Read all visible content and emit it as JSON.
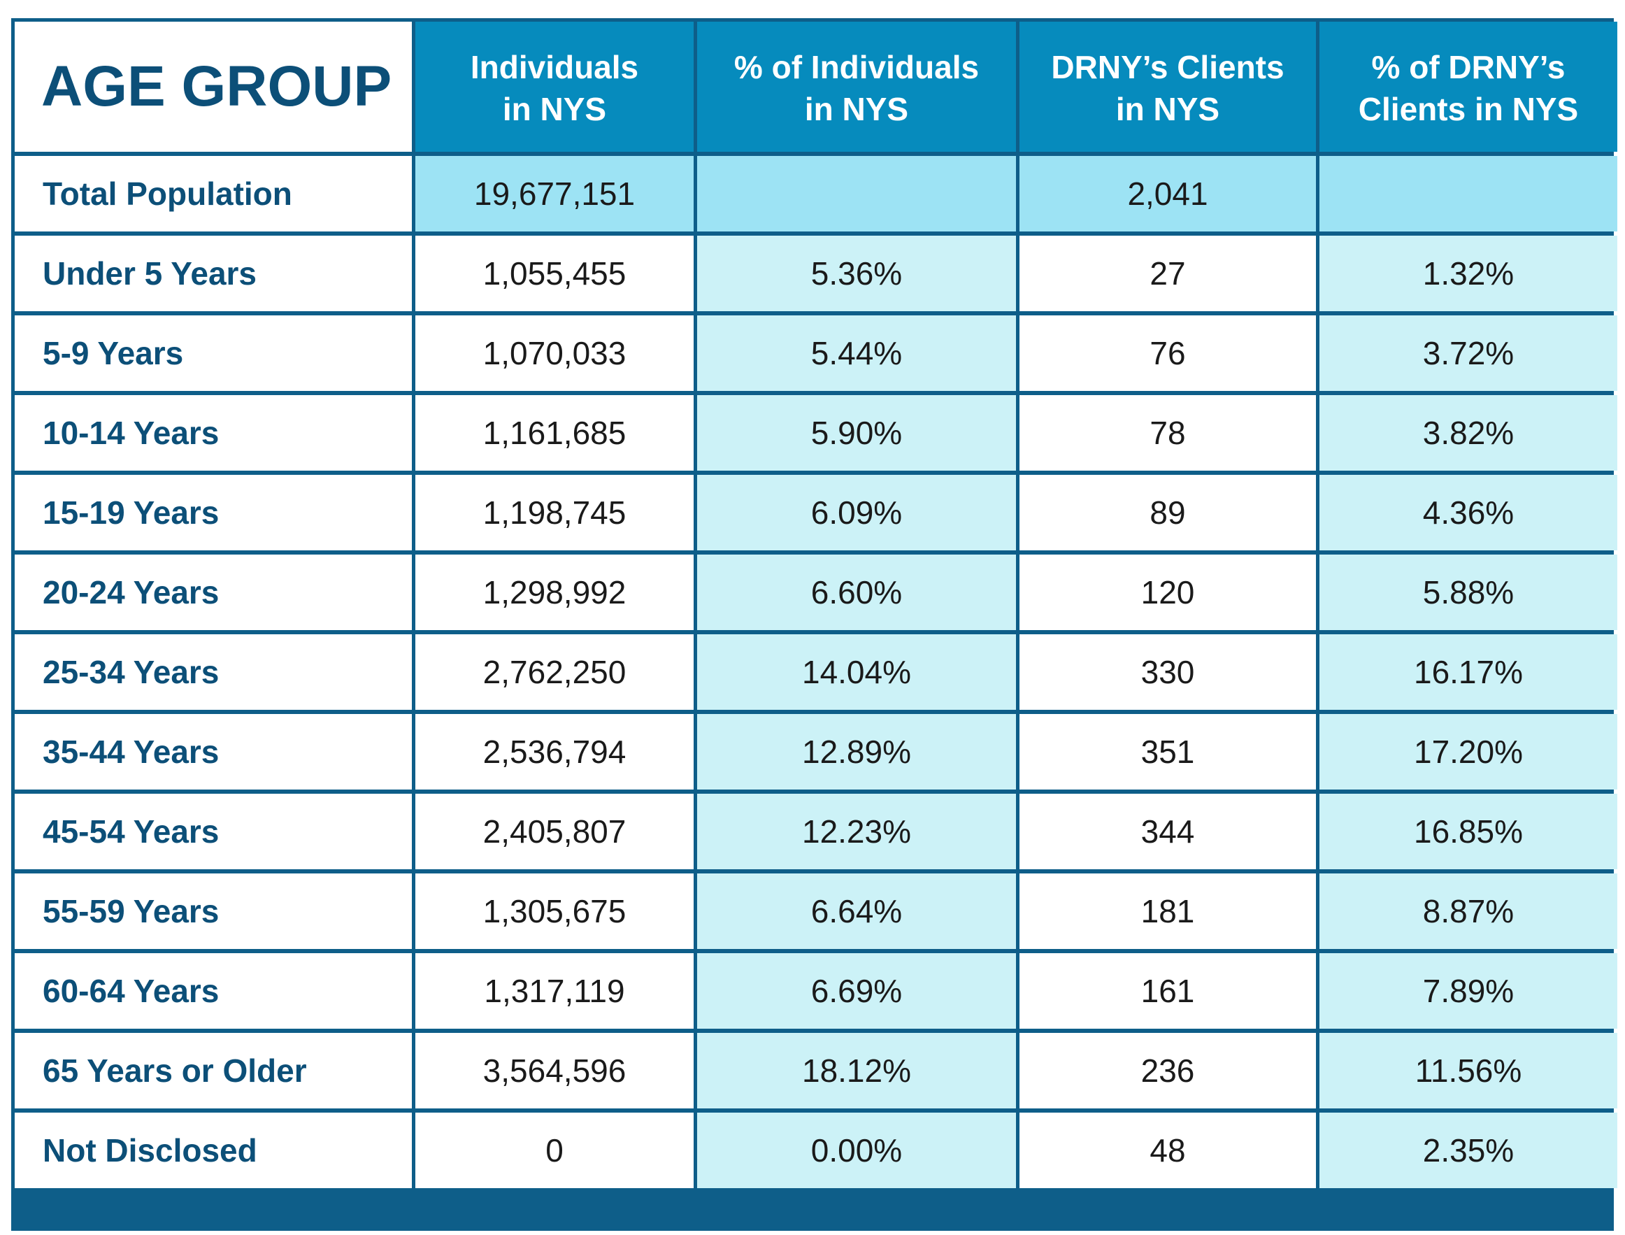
{
  "chart_data": {
    "type": "table",
    "header": {
      "label": "AGE GROUP",
      "columns": [
        "Individuals\nin NYS",
        "% of Individuals\nin NYS",
        "DRNY’s Clients\nin NYS",
        "% of DRNY’s\nClients in NYS"
      ]
    },
    "total": {
      "label": "Total Population",
      "cells": [
        "19,677,151",
        "",
        "2,041",
        ""
      ]
    },
    "rows": [
      {
        "label": "Under 5 Years",
        "cells": [
          "1,055,455",
          "5.36%",
          "27",
          "1.32%"
        ]
      },
      {
        "label": "5-9 Years",
        "cells": [
          "1,070,033",
          "5.44%",
          "76",
          "3.72%"
        ]
      },
      {
        "label": "10-14 Years",
        "cells": [
          "1,161,685",
          "5.90%",
          "78",
          "3.82%"
        ]
      },
      {
        "label": "15-19 Years",
        "cells": [
          "1,198,745",
          "6.09%",
          "89",
          "4.36%"
        ]
      },
      {
        "label": "20-24 Years",
        "cells": [
          "1,298,992",
          "6.60%",
          "120",
          "5.88%"
        ]
      },
      {
        "label": "25-34 Years",
        "cells": [
          "2,762,250",
          "14.04%",
          "330",
          "16.17%"
        ]
      },
      {
        "label": "35-44 Years",
        "cells": [
          "2,536,794",
          "12.89%",
          "351",
          "17.20%"
        ]
      },
      {
        "label": "45-54 Years",
        "cells": [
          "2,405,807",
          "12.23%",
          "344",
          "16.85%"
        ]
      },
      {
        "label": "55-59 Years",
        "cells": [
          "1,305,675",
          "6.64%",
          "181",
          "8.87%"
        ]
      },
      {
        "label": "60-64 Years",
        "cells": [
          "1,317,119",
          "6.69%",
          "161",
          "7.89%"
        ]
      },
      {
        "label": "65 Years or Older",
        "cells": [
          "3,564,596",
          "18.12%",
          "236",
          "11.56%"
        ]
      },
      {
        "label": "Not Disclosed",
        "cells": [
          "0",
          "0.00%",
          "48",
          "2.35%"
        ]
      }
    ],
    "colors": {
      "header_bg": "#068bbd",
      "label_text": "#0c4f78",
      "border": "#0e5e89",
      "tint_bg": "#ccf2f7",
      "total_bg": "#9de3f4"
    }
  }
}
